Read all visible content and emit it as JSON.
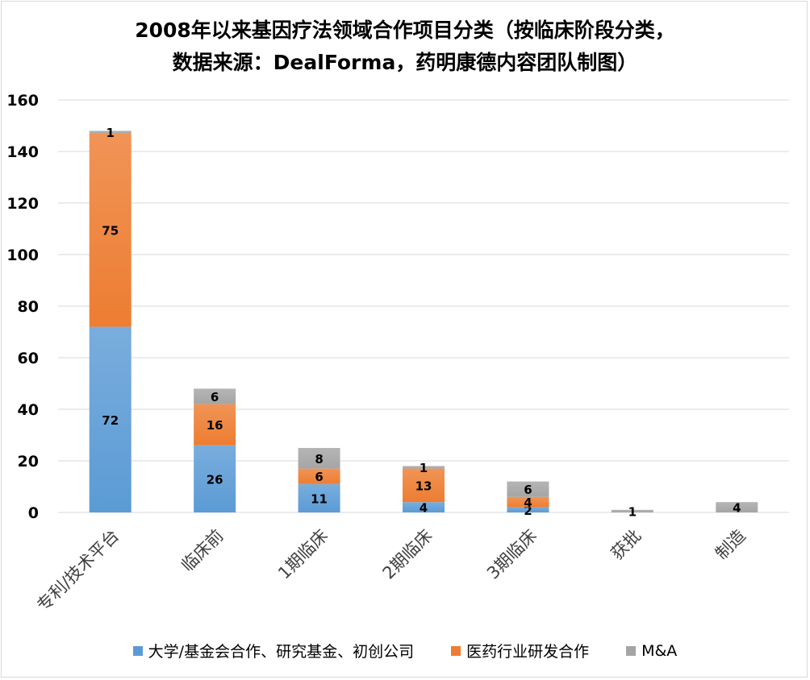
{
  "chart_data": {
    "type": "bar",
    "stacked": true,
    "title_line1": "2008年以来基因疗法领域合作项目分类（按临床阶段分类，",
    "title_line2": "数据来源：DealForma，药明康德内容团队制图）",
    "categories": [
      "专利/技术平台",
      "临床前",
      "1期临床",
      "2期临床",
      "3期临床",
      "获批",
      "制造"
    ],
    "series": [
      {
        "name": "大学/基金会合作、研究基金、初创公司",
        "color": "#5b9bd5",
        "values": [
          72,
          26,
          11,
          4,
          2,
          0,
          0
        ]
      },
      {
        "name": "医药行业研发合作",
        "color": "#ed7d31",
        "values": [
          75,
          16,
          6,
          13,
          4,
          0,
          0
        ]
      },
      {
        "name": "M&A",
        "color": "#a5a5a5",
        "values": [
          1,
          6,
          8,
          1,
          6,
          1,
          4
        ]
      }
    ],
    "ylim": [
      0,
      160
    ],
    "yticks": [
      0,
      20,
      40,
      60,
      80,
      100,
      120,
      140,
      160
    ],
    "grid": true,
    "legend_position": "bottom"
  }
}
